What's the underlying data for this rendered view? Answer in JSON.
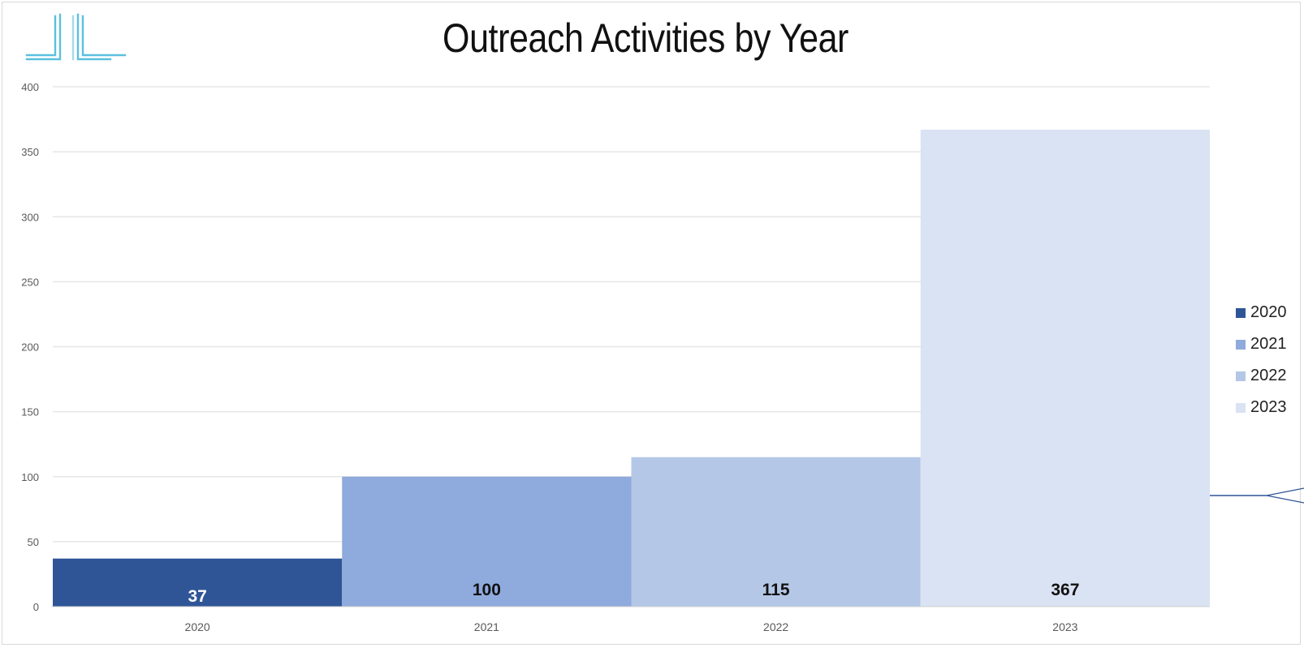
{
  "chart_data": {
    "type": "bar",
    "title": "Outreach Activities by Year",
    "categories": [
      "2020",
      "2021",
      "2022",
      "2023"
    ],
    "values": [
      37,
      100,
      115,
      367
    ],
    "data_labels": [
      "37",
      "100",
      "115",
      "367"
    ],
    "colors": [
      "#2f5597",
      "#8faadc",
      "#b4c7e7",
      "#dae3f3"
    ],
    "ylim": [
      0,
      400
    ],
    "yticks": [
      0,
      50,
      100,
      150,
      200,
      250,
      300,
      350,
      400
    ],
    "grid": true,
    "legend": {
      "placement": "right",
      "entries": [
        "2020",
        "2021",
        "2022",
        "2023"
      ]
    }
  },
  "colors": {
    "logo_accent": "#5bc0de",
    "gridline": "#e6e6e6",
    "connector_line": "#2f5597"
  },
  "icons": {
    "logo": "stylized-columns-logo"
  }
}
